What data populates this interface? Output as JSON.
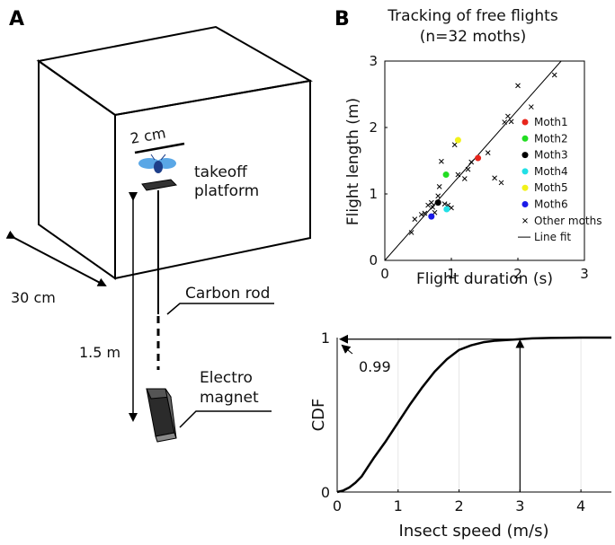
{
  "panel_a": {
    "letter": "A",
    "labels": {
      "scale_bar": "2 cm",
      "takeoff_line1": "takeoff",
      "takeoff_line2": "platform",
      "width": "30 cm",
      "carbon_rod": "Carbon rod",
      "height": "1.5 m",
      "magnet_line1": "Electro",
      "magnet_line2": "magnet"
    },
    "colors": {
      "moth_wing": "#5aa7e6",
      "moth_body": "#1e3f8a"
    }
  },
  "panel_b": {
    "letter": "B",
    "title_line1": "Tracking of free flights",
    "title_line2": "(n=32 moths)"
  },
  "chart_data": [
    {
      "type": "scatter",
      "title": "Tracking of free flights (n=32 moths)",
      "xlabel": "Flight duration (s)",
      "ylabel": "Flight length (m)",
      "xlim": [
        0,
        3
      ],
      "ylim": [
        0,
        3
      ],
      "xticks": [
        "0",
        "1",
        "2",
        "3"
      ],
      "yticks": [
        "0",
        "1",
        "2",
        "3"
      ],
      "legend_position": "bottom-right",
      "series": [
        {
          "name": "Moth1",
          "color": "#e8251c",
          "marker": "dot",
          "points": [
            [
              1.4,
              1.54
            ]
          ]
        },
        {
          "name": "Moth2",
          "color": "#22dd22",
          "marker": "dot",
          "points": [
            [
              0.92,
              1.29
            ]
          ]
        },
        {
          "name": "Moth3",
          "color": "#000000",
          "marker": "dot",
          "points": [
            [
              0.8,
              0.87
            ]
          ]
        },
        {
          "name": "Moth4",
          "color": "#22e0e6",
          "marker": "dot",
          "points": [
            [
              0.93,
              0.77
            ]
          ]
        },
        {
          "name": "Moth5",
          "color": "#f2f21a",
          "marker": "dot",
          "points": [
            [
              1.1,
              1.81
            ]
          ]
        },
        {
          "name": "Moth6",
          "color": "#1a1ae8",
          "marker": "dot",
          "points": [
            [
              0.7,
              0.66
            ]
          ]
        },
        {
          "name": "Other moths",
          "color": "#000000",
          "marker": "x",
          "points": [
            [
              0.4,
              0.42
            ],
            [
              0.45,
              0.62
            ],
            [
              0.55,
              0.69
            ],
            [
              0.6,
              0.71
            ],
            [
              0.65,
              0.83
            ],
            [
              0.7,
              0.87
            ],
            [
              0.72,
              0.8
            ],
            [
              0.75,
              0.72
            ],
            [
              0.8,
              0.97
            ],
            [
              0.82,
              1.11
            ],
            [
              0.85,
              1.49
            ],
            [
              0.9,
              0.85
            ],
            [
              0.95,
              0.83
            ],
            [
              1.0,
              0.79
            ],
            [
              1.05,
              1.74
            ],
            [
              1.1,
              1.29
            ],
            [
              1.2,
              1.23
            ],
            [
              1.25,
              1.37
            ],
            [
              1.3,
              1.48
            ],
            [
              1.55,
              1.62
            ],
            [
              1.65,
              1.24
            ],
            [
              1.75,
              1.17
            ],
            [
              1.8,
              2.08
            ],
            [
              1.85,
              2.17
            ],
            [
              1.9,
              2.09
            ],
            [
              2.0,
              2.63
            ],
            [
              2.2,
              2.31
            ],
            [
              2.55,
              2.79
            ]
          ]
        },
        {
          "name": "Line fit",
          "color": "#000000",
          "marker": "line",
          "points": [
            [
              0,
              0
            ],
            [
              2.65,
              3.0
            ]
          ]
        }
      ]
    },
    {
      "type": "line",
      "xlabel": "Insect speed (m/s)",
      "ylabel": "CDF",
      "xlim": [
        0,
        4.5
      ],
      "ylim": [
        0,
        1
      ],
      "xticks": [
        "0",
        "1",
        "2",
        "3",
        "4"
      ],
      "yticks": [
        "0",
        "1"
      ],
      "annotation": "0.99",
      "annotation_point": [
        3,
        0.99
      ],
      "series": [
        {
          "x": [
            0,
            0.1,
            0.2,
            0.3,
            0.4,
            0.5,
            0.6,
            0.8,
            1.0,
            1.2,
            1.4,
            1.6,
            1.8,
            2.0,
            2.2,
            2.4,
            2.6,
            2.8,
            3.0,
            3.2,
            3.5,
            4.0,
            4.5
          ],
          "y": [
            0,
            0.01,
            0.03,
            0.06,
            0.1,
            0.16,
            0.22,
            0.33,
            0.45,
            0.57,
            0.68,
            0.78,
            0.86,
            0.92,
            0.95,
            0.97,
            0.98,
            0.985,
            0.99,
            0.995,
            0.998,
            1.0,
            1.0
          ]
        }
      ]
    }
  ]
}
